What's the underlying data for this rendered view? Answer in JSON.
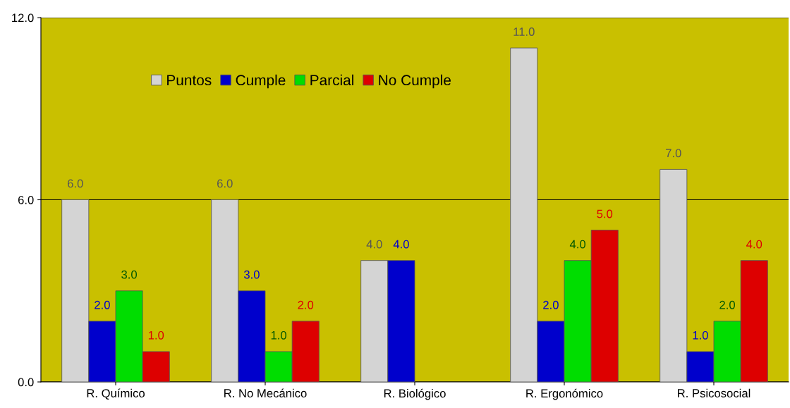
{
  "chart_data": {
    "type": "bar",
    "categories": [
      "R. Químico",
      "R. No Mecánico",
      "R. Biológico",
      "R. Ergonómico",
      "R. Psicosocial"
    ],
    "series": [
      {
        "name": "Puntos",
        "color": "#d4d4d4",
        "values": [
          6,
          6,
          4,
          11,
          7
        ],
        "value_labels": [
          "6.0",
          "6.0",
          "4.0",
          "11.0",
          "7.0"
        ]
      },
      {
        "name": "Cumple",
        "color": "#0000cc",
        "values": [
          2,
          3,
          4,
          2,
          1
        ],
        "value_labels": [
          "2.0",
          "3.0",
          "4.0",
          "2.0",
          "1.0"
        ]
      },
      {
        "name": "Parcial",
        "color": "#00dd00",
        "values": [
          3,
          1,
          null,
          4,
          2
        ],
        "value_labels": [
          "3.0",
          "1.0",
          null,
          "4.0",
          "2.0"
        ]
      },
      {
        "name": "No Cumple",
        "color": "#dd0000",
        "values": [
          1,
          2,
          null,
          5,
          4
        ],
        "value_labels": [
          "1.0",
          "2.0",
          null,
          "5.0",
          "4.0"
        ]
      }
    ],
    "ylim": [
      0,
      12
    ],
    "yticks": [
      {
        "value": 0,
        "label": "0.0"
      },
      {
        "value": 6,
        "label": "6.0"
      },
      {
        "value": 12,
        "label": "12.0"
      }
    ],
    "grid": "y",
    "legend": "top left"
  }
}
